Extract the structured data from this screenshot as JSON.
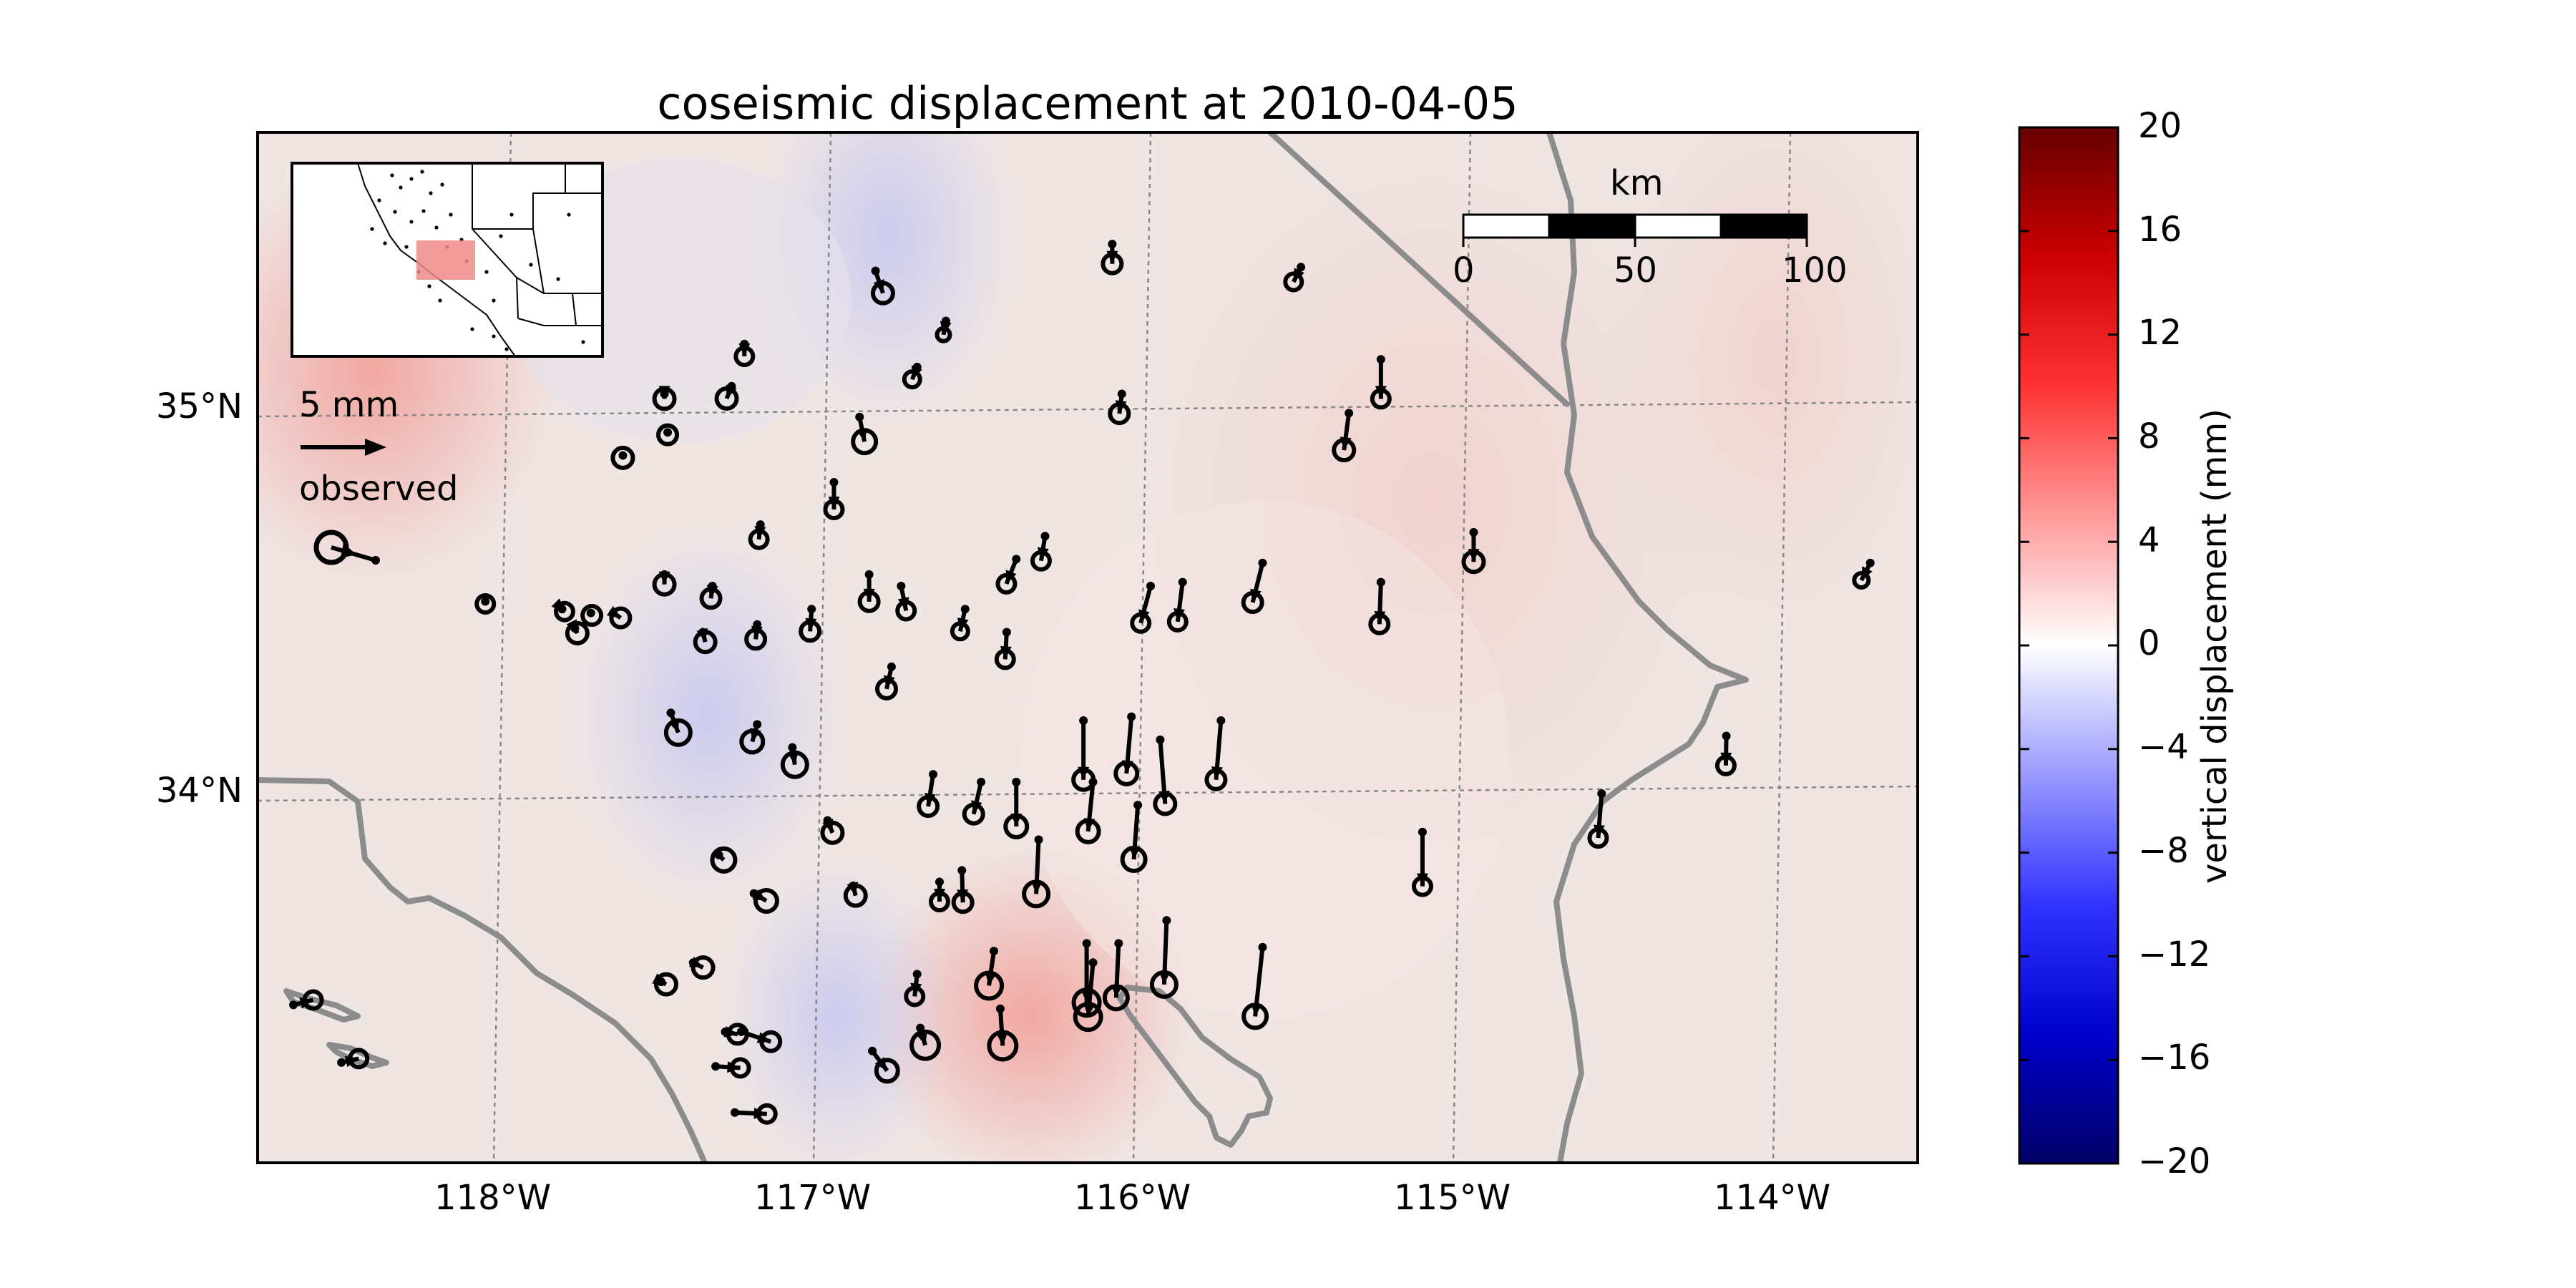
{
  "title": "coseismic displacement at 2010-04-05",
  "map": {
    "lon_range": [
      -118.8,
      -113.6
    ],
    "lat_range": [
      33.05,
      35.75
    ],
    "lon_ticks": [
      {
        "value": -118,
        "label": "118°W"
      },
      {
        "value": -117,
        "label": "117°W"
      },
      {
        "value": -116,
        "label": "116°W"
      },
      {
        "value": -115,
        "label": "115°W"
      },
      {
        "value": -114,
        "label": "114°W"
      }
    ],
    "lat_ticks": [
      {
        "value": 35,
        "label": "35°N"
      },
      {
        "value": 34,
        "label": "34°N"
      }
    ],
    "grid": true
  },
  "scale_bar": {
    "title": "km",
    "labels": [
      "0",
      "50",
      "100"
    ]
  },
  "reference_arrow": {
    "label": "5 mm",
    "observed_label": "observed"
  },
  "colorbar": {
    "label": "vertical displacement (mm)",
    "range": [
      -20,
      20
    ],
    "ticks": [
      "20",
      "16",
      "12",
      "8",
      "4",
      "0",
      "−4",
      "−8",
      "−12",
      "−16",
      "−20"
    ],
    "colors": [
      "#000066",
      "#0000cc",
      "#3333ff",
      "#9999ff",
      "#ffffff",
      "#ff9999",
      "#ff3333",
      "#cc0000",
      "#660000"
    ]
  },
  "stations": [
    [
      -116.12,
      35.43,
      0.0,
      0.4,
      0.4
    ],
    [
      -116.86,
      35.36,
      0.15,
      0.45,
      -0.5
    ],
    [
      -115.53,
      35.37,
      -0.15,
      0.3,
      0.25
    ],
    [
      -116.64,
      35.23,
      -0.05,
      0.28,
      0.0
    ],
    [
      -117.27,
      35.17,
      0.0,
      0.25,
      -0.3
    ],
    [
      -116.73,
      35.11,
      -0.1,
      0.25,
      0.2
    ],
    [
      -115.28,
      35.13,
      0.0,
      0.8,
      0.3
    ],
    [
      -117.31,
      35.06,
      -0.1,
      0.25,
      -0.5
    ],
    [
      -117.52,
      35.04,
      0.0,
      0.1,
      -0.5
    ],
    [
      -116.09,
      35.04,
      -0.05,
      0.4,
      0.4
    ],
    [
      -115.38,
      34.99,
      -0.1,
      0.75,
      0.5
    ],
    [
      -116.91,
      34.98,
      0.1,
      0.5,
      -0.7
    ],
    [
      -117.51,
      34.94,
      0.0,
      0.05,
      -0.4
    ],
    [
      -117.65,
      34.88,
      0.0,
      0.05,
      -0.5
    ],
    [
      -116.99,
      34.81,
      0.0,
      0.55,
      -0.3
    ],
    [
      -114.99,
      34.68,
      0.0,
      0.6,
      0.5
    ],
    [
      -113.75,
      34.6,
      -0.18,
      0.35,
      0.1
    ],
    [
      -117.22,
      34.7,
      -0.03,
      0.3,
      -0.3
    ],
    [
      -116.33,
      34.67,
      -0.08,
      0.5,
      0.3
    ],
    [
      -116.42,
      34.61,
      -0.2,
      0.5,
      0.3
    ],
    [
      -115.65,
      34.6,
      -0.2,
      0.8,
      0.4
    ],
    [
      -115.28,
      34.55,
      -0.03,
      0.85,
      0.35
    ],
    [
      -116.88,
      34.57,
      0.0,
      0.55,
      -0.4
    ],
    [
      -116.78,
      34.54,
      0.1,
      0.5,
      -0.3
    ],
    [
      -116.0,
      34.54,
      -0.2,
      0.75,
      0.3
    ],
    [
      -115.9,
      34.55,
      -0.1,
      0.8,
      0.3
    ],
    [
      -117.52,
      34.57,
      0.0,
      0.2,
      -0.5
    ],
    [
      -117.37,
      34.54,
      -0.03,
      0.25,
      -0.4
    ],
    [
      -117.06,
      34.48,
      -0.03,
      0.45,
      -0.4
    ],
    [
      -116.58,
      34.48,
      -0.1,
      0.45,
      0.2
    ],
    [
      -118.08,
      34.5,
      0.0,
      0.05,
      -0.3
    ],
    [
      -117.84,
      34.48,
      0.05,
      0.05,
      -0.3
    ],
    [
      -117.75,
      34.47,
      0.02,
      0.05,
      -0.4
    ],
    [
      -117.68,
      34.47,
      0.15,
      0.1,
      -0.4
    ],
    [
      -117.8,
      34.43,
      0.05,
      0.1,
      -0.5
    ],
    [
      -117.23,
      34.44,
      -0.03,
      0.3,
      -0.4
    ],
    [
      -117.4,
      34.42,
      0.05,
      0.2,
      -0.5
    ],
    [
      -116.45,
      34.42,
      -0.03,
      0.55,
      0.3
    ],
    [
      -116.81,
      34.33,
      -0.1,
      0.45,
      -0.4
    ],
    [
      -116.21,
      34.19,
      0.0,
      1.2,
      0.5
    ],
    [
      -116.06,
      34.2,
      -0.1,
      1.15,
      0.6
    ],
    [
      -115.78,
      34.19,
      -0.1,
      1.2,
      0.4
    ],
    [
      -116.42,
      34.03,
      0.0,
      0.9,
      0.6
    ],
    [
      -115.97,
      34.14,
      0.1,
      1.3,
      0.5
    ],
    [
      -117.5,
      34.21,
      0.15,
      0.4,
      -0.8
    ],
    [
      -117.23,
      34.18,
      -0.1,
      0.35,
      -0.6
    ],
    [
      -117.12,
      34.12,
      0.05,
      0.35,
      -0.8
    ],
    [
      -116.18,
      34.03,
      -0.1,
      1.0,
      0.6
    ],
    [
      -116.53,
      34.03,
      -0.15,
      0.65,
      0.4
    ],
    [
      -116.68,
      34.05,
      -0.1,
      0.65,
      0.4
    ],
    [
      -115.15,
      33.9,
      0.0,
      1.1,
      0.3
    ],
    [
      -114.59,
      34.0,
      -0.07,
      0.9,
      0.3
    ],
    [
      -114.2,
      34.15,
      -0.01,
      0.6,
      0.3
    ],
    [
      -116.04,
      33.97,
      -0.08,
      1.1,
      0.7
    ],
    [
      -117.01,
      33.93,
      0.1,
      0.25,
      -0.5
    ],
    [
      -116.35,
      33.88,
      -0.05,
      1.1,
      0.8
    ],
    [
      -117.35,
      33.84,
      0.1,
      0.1,
      -0.7
    ],
    [
      -117.24,
      33.74,
      0.25,
      0.15,
      -0.6
    ],
    [
      -116.66,
      33.77,
      0.0,
      0.4,
      0.3
    ],
    [
      -116.59,
      33.8,
      0.02,
      0.65,
      0.4
    ],
    [
      -116.93,
      33.76,
      0.05,
      0.2,
      -0.5
    ],
    [
      -115.95,
      33.67,
      -0.05,
      1.3,
      0.8
    ],
    [
      -115.65,
      33.6,
      -0.15,
      1.4,
      0.7
    ],
    [
      -116.1,
      33.61,
      -0.05,
      1.1,
      0.7
    ],
    [
      -116.2,
      33.61,
      0.0,
      1.2,
      0.9
    ],
    [
      -116.18,
      33.56,
      -0.1,
      1.1,
      0.9
    ],
    [
      -116.49,
      33.59,
      -0.1,
      0.7,
      0.9
    ],
    [
      -116.73,
      33.53,
      -0.05,
      0.45,
      0.3
    ],
    [
      -117.43,
      33.56,
      0.2,
      0.1,
      -0.5
    ],
    [
      -117.53,
      33.51,
      0.1,
      0.05,
      -0.5
    ],
    [
      -116.47,
      33.44,
      0.05,
      0.75,
      1.0
    ],
    [
      -116.72,
      33.39,
      0.1,
      0.35,
      1.0
    ],
    [
      -116.87,
      33.33,
      0.3,
      0.4,
      0.6
    ],
    [
      -117.28,
      33.38,
      0.6,
      0.2,
      -0.4
    ],
    [
      -117.33,
      33.38,
      0.25,
      0.05,
      -0.4
    ],
    [
      -117.36,
      33.29,
      0.5,
      0.03,
      -0.3
    ],
    [
      -117.3,
      33.17,
      0.65,
      0.03,
      -0.3
    ],
    [
      -118.68,
      33.45,
      0.4,
      -0.1,
      -0.3
    ],
    [
      -118.53,
      33.3,
      0.35,
      -0.08,
      -0.3
    ]
  ]
}
